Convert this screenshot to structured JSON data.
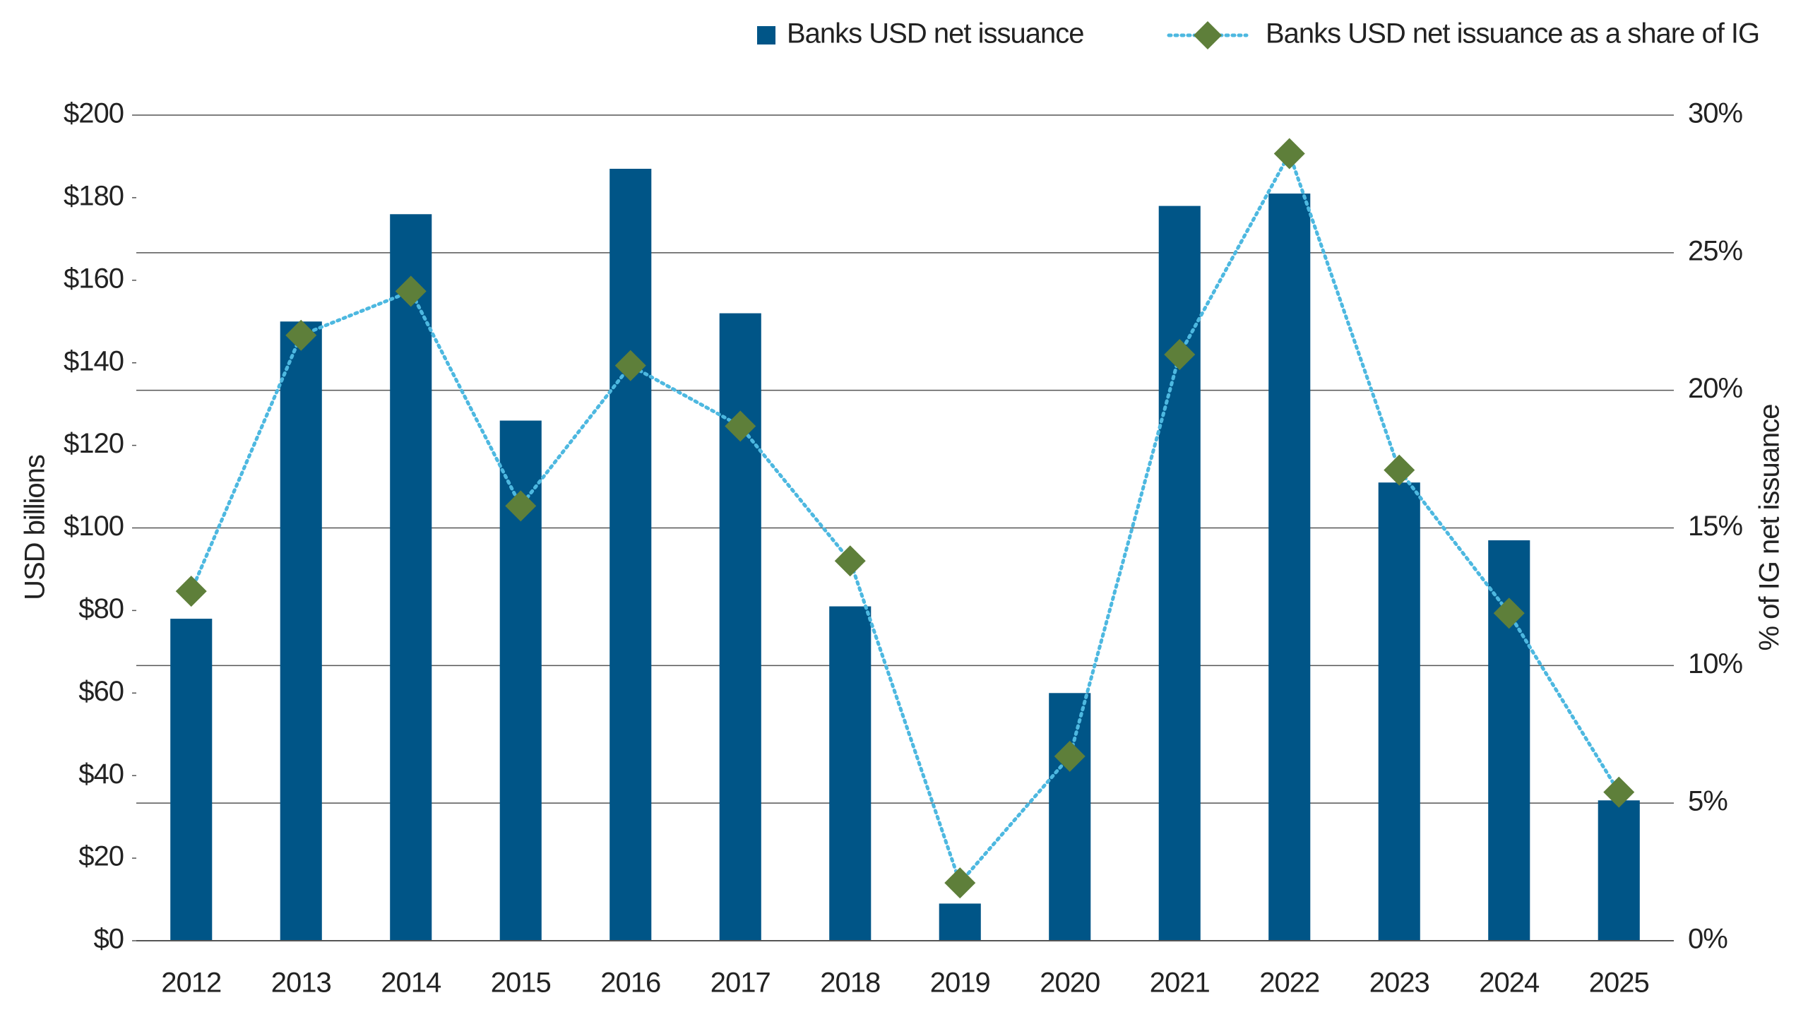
{
  "chart_data": {
    "type": "bar-line",
    "y_label": "USD billions",
    "y2_label": "% of IG net issuance",
    "categories": [
      "2012",
      "2013",
      "2014",
      "2015",
      "2016",
      "2017",
      "2018",
      "2019",
      "2020",
      "2021",
      "2022",
      "2023",
      "2024",
      "2025"
    ],
    "series": [
      {
        "name": "Banks USD net issuance",
        "type": "bar",
        "color": "#005587",
        "values": [
          78,
          150,
          176,
          126,
          187,
          152,
          81,
          9,
          60,
          178,
          181,
          111,
          97,
          34
        ]
      },
      {
        "name": "Banks USD net issuance as a share of IG",
        "type": "line",
        "axis": "y2",
        "color": "#4db8e0",
        "marker_color": "#5e7f3a",
        "values": [
          12.7,
          22.0,
          23.6,
          15.8,
          20.9,
          18.7,
          13.8,
          2.1,
          6.7,
          21.3,
          28.6,
          17.1,
          11.9,
          5.4
        ]
      }
    ],
    "ylim": [
      0,
      200
    ],
    "yticks": [
      {
        "value": 0,
        "label": "$0"
      },
      {
        "value": 20,
        "label": "$20"
      },
      {
        "value": 40,
        "label": "$40"
      },
      {
        "value": 60,
        "label": "$60"
      },
      {
        "value": 80,
        "label": "$80"
      },
      {
        "value": 100,
        "label": "$100"
      },
      {
        "value": 120,
        "label": "$120"
      },
      {
        "value": 140,
        "label": "$140"
      },
      {
        "value": 160,
        "label": "$160"
      },
      {
        "value": 180,
        "label": "$180"
      },
      {
        "value": 200,
        "label": "$200"
      }
    ],
    "y2lim": [
      0,
      30
    ],
    "y2ticks": [
      {
        "value": 0,
        "label": "0%"
      },
      {
        "value": 5,
        "label": "5%"
      },
      {
        "value": 10,
        "label": "10%"
      },
      {
        "value": 15,
        "label": "15%"
      },
      {
        "value": 20,
        "label": "20%"
      },
      {
        "value": 25,
        "label": "25%"
      },
      {
        "value": 30,
        "label": "30%"
      }
    ],
    "grid": "y2",
    "legend": "top-right"
  }
}
